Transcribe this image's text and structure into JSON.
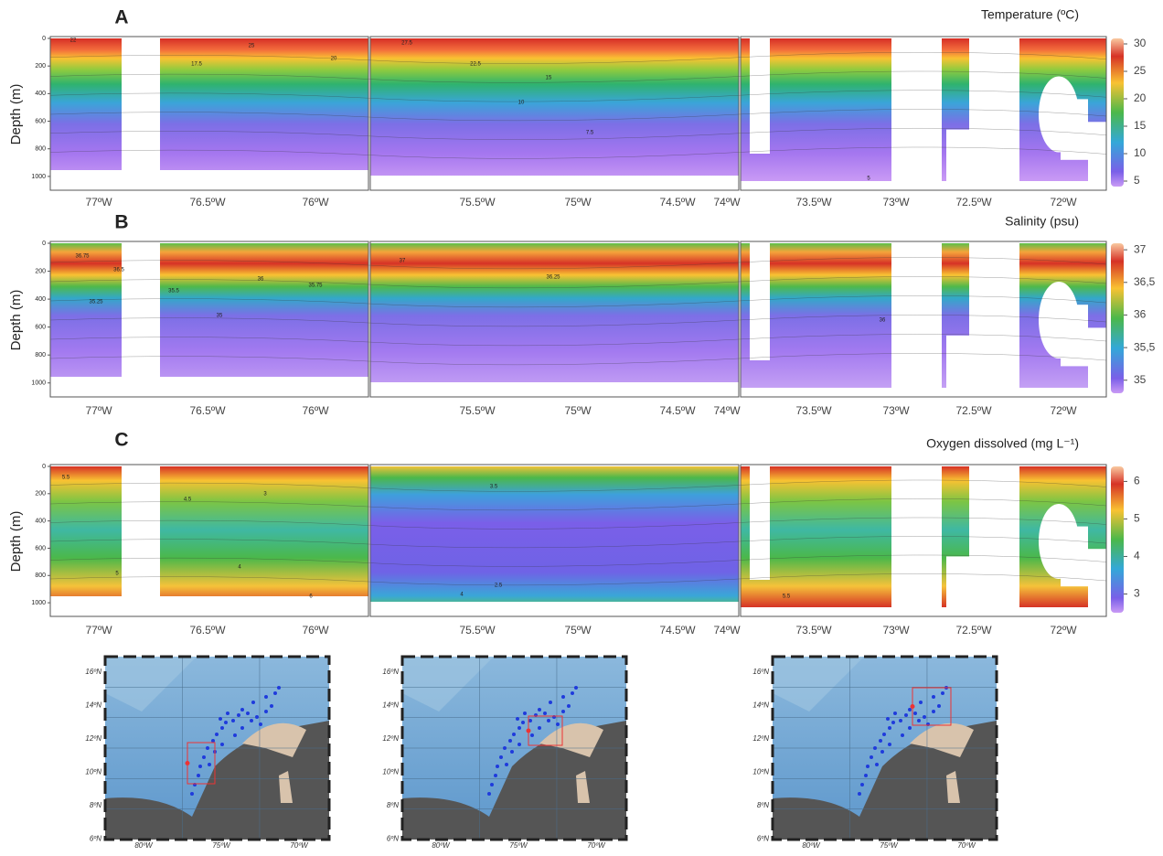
{
  "panels": [
    {
      "label": "A",
      "title": "Temperature (ºC)",
      "ylabel": "Depth (m)",
      "yticks": [
        0,
        200,
        400,
        600,
        800,
        1000
      ],
      "xticks": [
        "77ºW",
        "76.5ºW",
        "76ºW",
        "75.5ºW",
        "75ºW",
        "74.5ºW",
        "74ºW",
        "73.5ºW",
        "73ºW",
        "72.5ºW",
        "72ºW"
      ],
      "colorbar": {
        "lim": [
          4,
          31
        ],
        "ticks": [
          30,
          25,
          20,
          15,
          10,
          5
        ]
      },
      "contour_labels": [
        "22",
        "25",
        "17.5",
        "20",
        "27.5",
        "22.5",
        "15",
        "10",
        "7.5",
        "5"
      ]
    },
    {
      "label": "B",
      "title": "Salinity (psu)",
      "ylabel": "Depth (m)",
      "yticks": [
        0,
        200,
        400,
        600,
        800,
        1000
      ],
      "xticks": [
        "77ºW",
        "76.5ºW",
        "76ºW",
        "75.5ºW",
        "75ºW",
        "74.5ºW",
        "74ºW",
        "73.5ºW",
        "73ºW",
        "72.5ºW",
        "72ºW"
      ],
      "colorbar": {
        "lim": [
          34.8,
          37.1
        ],
        "ticks": [
          37,
          {
            "value": 36.5,
            "label": "36,5"
          },
          36,
          {
            "value": 35.5,
            "label": "35,5"
          },
          35
        ]
      },
      "contour_labels": [
        "36.75",
        "36.5",
        "35.25",
        "36",
        "35.75",
        "35.5",
        "35",
        "37",
        "36.25",
        "36"
      ]
    },
    {
      "label": "C",
      "title": "Oxygen dissolved (mg L⁻¹)",
      "ylabel": "Depth (m)",
      "yticks": [
        0,
        200,
        400,
        600,
        800,
        1000
      ],
      "xticks": [
        "77ºW",
        "76.5ºW",
        "76ºW",
        "75.5ºW",
        "75ºW",
        "74.5ºW",
        "74ºW",
        "73.5ºW",
        "73ºW",
        "72.5ºW",
        "72ºW"
      ],
      "colorbar": {
        "lim": [
          2.5,
          6.4
        ],
        "ticks": [
          6,
          5,
          4,
          3
        ]
      },
      "contour_labels": [
        "5.5",
        "4.5",
        "4",
        "5",
        "3.5",
        "2.5",
        "3",
        "4",
        "5.5",
        "6"
      ]
    }
  ],
  "maps": [
    {
      "lat_ticks": [
        "16ºN",
        "14ºN",
        "12ºN",
        "10ºN",
        "8ºN",
        "6ºN"
      ],
      "lon_ticks": [
        "80ºW",
        "75ºW",
        "70ºW"
      ]
    },
    {
      "lat_ticks": [
        "16ºN",
        "14ºN",
        "12ºN",
        "10ºN",
        "8ºN",
        "6ºN"
      ],
      "lon_ticks": [
        "80ºW",
        "75ºW",
        "70ºW"
      ]
    },
    {
      "lat_ticks": [
        "16ºN",
        "14ºN",
        "12ºN",
        "10ºN",
        "8ºN",
        "6ºN"
      ],
      "lon_ticks": [
        "80ºW",
        "75ºW",
        "70ºW"
      ]
    }
  ]
}
